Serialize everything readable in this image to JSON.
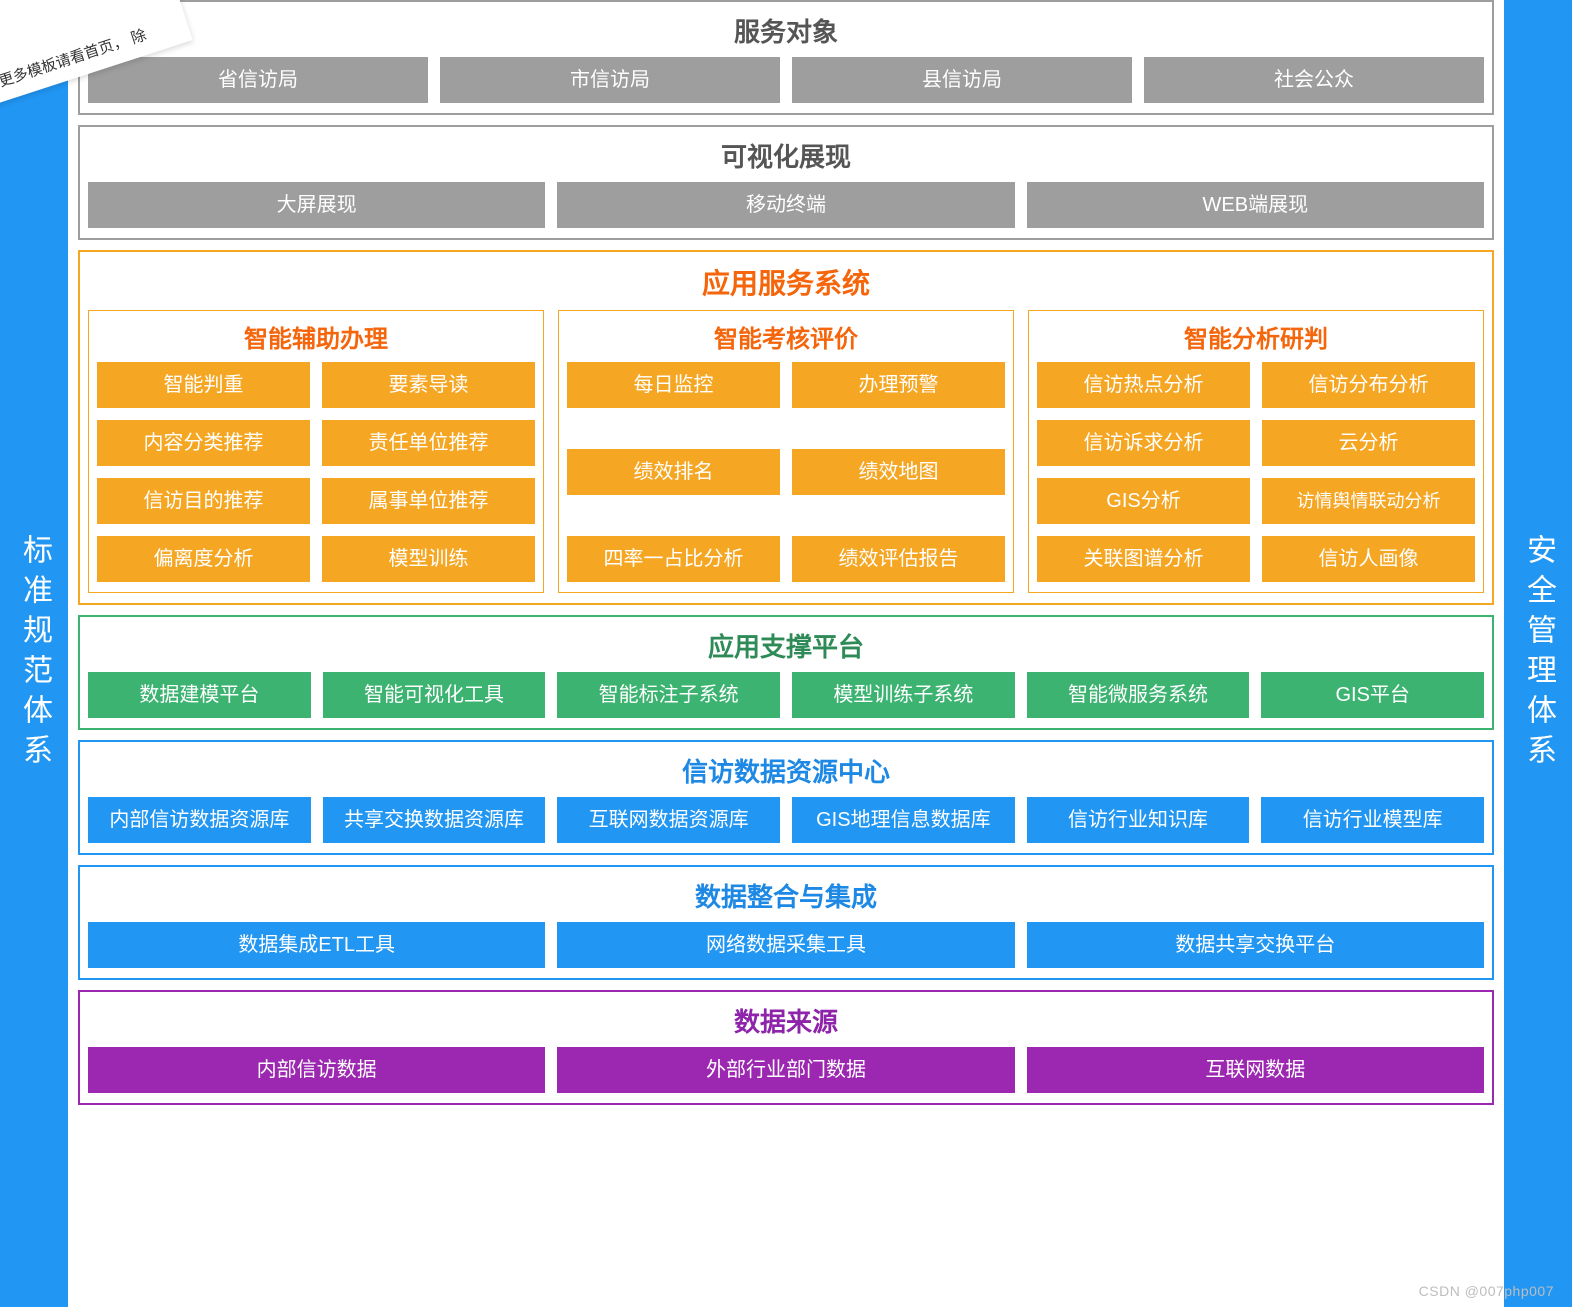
{
  "ribbon_text": "更多模板请看首页，\n除",
  "left_side_label": "标准规范体系",
  "right_side_label": "安全管理体系",
  "watermark": "CSDN @007php007",
  "colors": {
    "side_bg": "#2196f3",
    "gray": "#9e9e9e",
    "gray_title": "#555555",
    "orange_border": "#f5a623",
    "orange_title": "#f5650b",
    "orange_fill": "#f5a623",
    "green_border": "#3cb371",
    "green_title": "#2e8b57",
    "green_fill": "#3cb371",
    "blue_border": "#2196f3",
    "blue_title": "#1e88e5",
    "blue_fill": "#2196f3",
    "purple_border": "#9c27b0",
    "purple_title": "#8e24aa",
    "purple_fill": "#9c27b0",
    "white": "#ffffff"
  },
  "fonts": {
    "panel_title_size": 26,
    "panel_title_weight": 700,
    "sub_title_size": 24,
    "box_size": 20,
    "side_label_size": 30
  },
  "sections": {
    "service_targets": {
      "title": "服务对象",
      "items": [
        "省信访局",
        "市信访局",
        "县信访局",
        "社会公众"
      ]
    },
    "visualization": {
      "title": "可视化展现",
      "items": [
        "大屏展现",
        "移动终端",
        "WEB端展现"
      ]
    },
    "app_service": {
      "title": "应用服务系统",
      "groups": [
        {
          "title": "智能辅助办理",
          "layout": "4x2",
          "items": [
            "智能判重",
            "要素导读",
            "内容分类推荐",
            "责任单位推荐",
            "信访目的推荐",
            "属事单位推荐",
            "偏离度分析",
            "模型训练"
          ]
        },
        {
          "title": "智能考核评价",
          "layout": "3x2",
          "items": [
            "每日监控",
            "办理预警",
            "绩效排名",
            "绩效地图",
            "四率一占比分析",
            "绩效评估报告"
          ]
        },
        {
          "title": "智能分析研判",
          "layout": "4x2",
          "items": [
            "信访热点分析",
            "信访分布分析",
            "信访诉求分析",
            "云分析",
            "GIS分析",
            "访情舆情联动分析",
            "关联图谱分析",
            "信访人画像"
          ]
        }
      ]
    },
    "support_platform": {
      "title": "应用支撑平台",
      "items": [
        "数据建模平台",
        "智能可视化工具",
        "智能标注子系统",
        "模型训练子系统",
        "智能微服务系统",
        "GIS平台"
      ]
    },
    "data_center": {
      "title": "信访数据资源中心",
      "items": [
        "内部信访数据资源库",
        "共享交换数据资源库",
        "互联网数据资源库",
        "GIS地理信息数据库",
        "信访行业知识库",
        "信访行业模型库"
      ]
    },
    "data_integration": {
      "title": "数据整合与集成",
      "items": [
        "数据集成ETL工具",
        "网络数据采集工具",
        "数据共享交换平台"
      ]
    },
    "data_source": {
      "title": "数据来源",
      "items": [
        "内部信访数据",
        "外部行业部门数据",
        "互联网数据"
      ]
    }
  }
}
